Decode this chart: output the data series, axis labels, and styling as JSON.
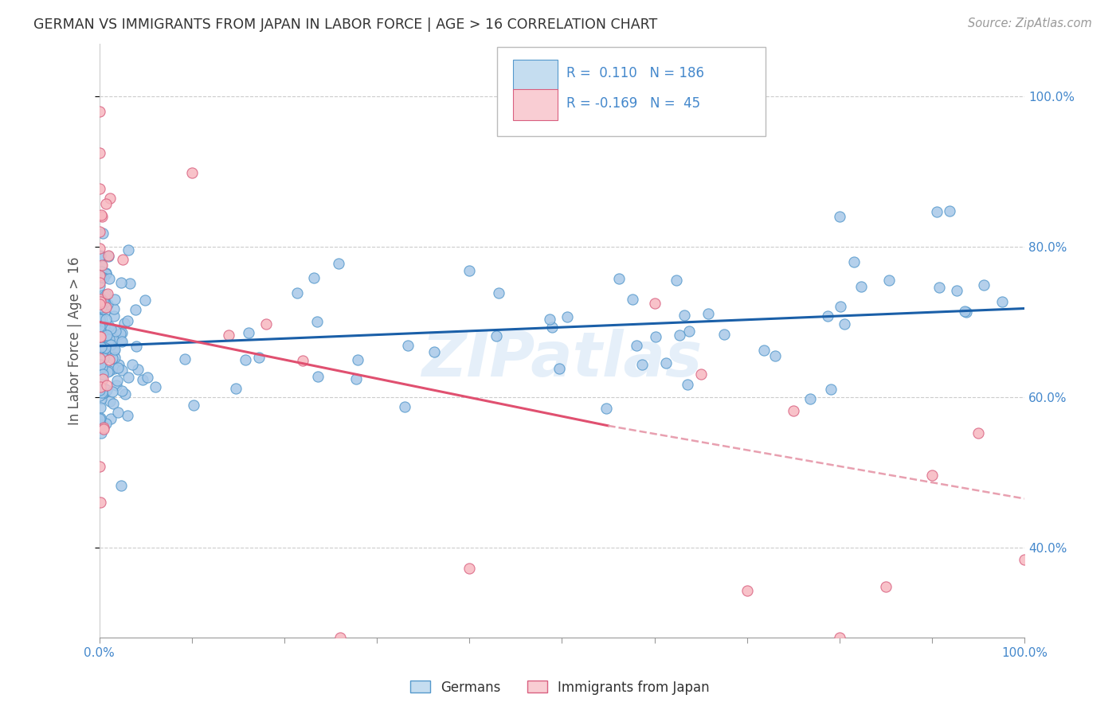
{
  "title": "GERMAN VS IMMIGRANTS FROM JAPAN IN LABOR FORCE | AGE > 16 CORRELATION CHART",
  "source_text": "Source: ZipAtlas.com",
  "ylabel": "In Labor Force | Age > 16",
  "x_min": 0.0,
  "x_max": 1.0,
  "y_min": 0.28,
  "y_max": 1.07,
  "y_ticks": [
    0.4,
    0.6,
    0.8,
    1.0
  ],
  "blue_dot_color": "#a8c8e8",
  "blue_dot_edge": "#5599cc",
  "blue_line_color": "#1a5fa8",
  "pink_dot_color": "#f7b8c0",
  "pink_dot_edge": "#d96080",
  "pink_line_color": "#e05070",
  "pink_dash_color": "#e8a0b0",
  "legend_blue_fill": "#c5ddf0",
  "legend_pink_fill": "#f9cdd3",
  "r_blue": 0.11,
  "n_blue": 186,
  "r_pink": -0.169,
  "n_pink": 45,
  "watermark": "ZIPatlas",
  "blue_trend_y_start": 0.668,
  "blue_trend_y_end": 0.718,
  "pink_trend_y_start": 0.7,
  "pink_trend_y_mid": 0.562,
  "pink_trend_solid_x_end": 0.55,
  "pink_trend_y_end": 0.465,
  "background_color": "#ffffff",
  "grid_color": "#cccccc",
  "title_color": "#333333",
  "axis_label_color": "#555555",
  "tick_label_color": "#4488cc",
  "legend_label_color": "#333333"
}
